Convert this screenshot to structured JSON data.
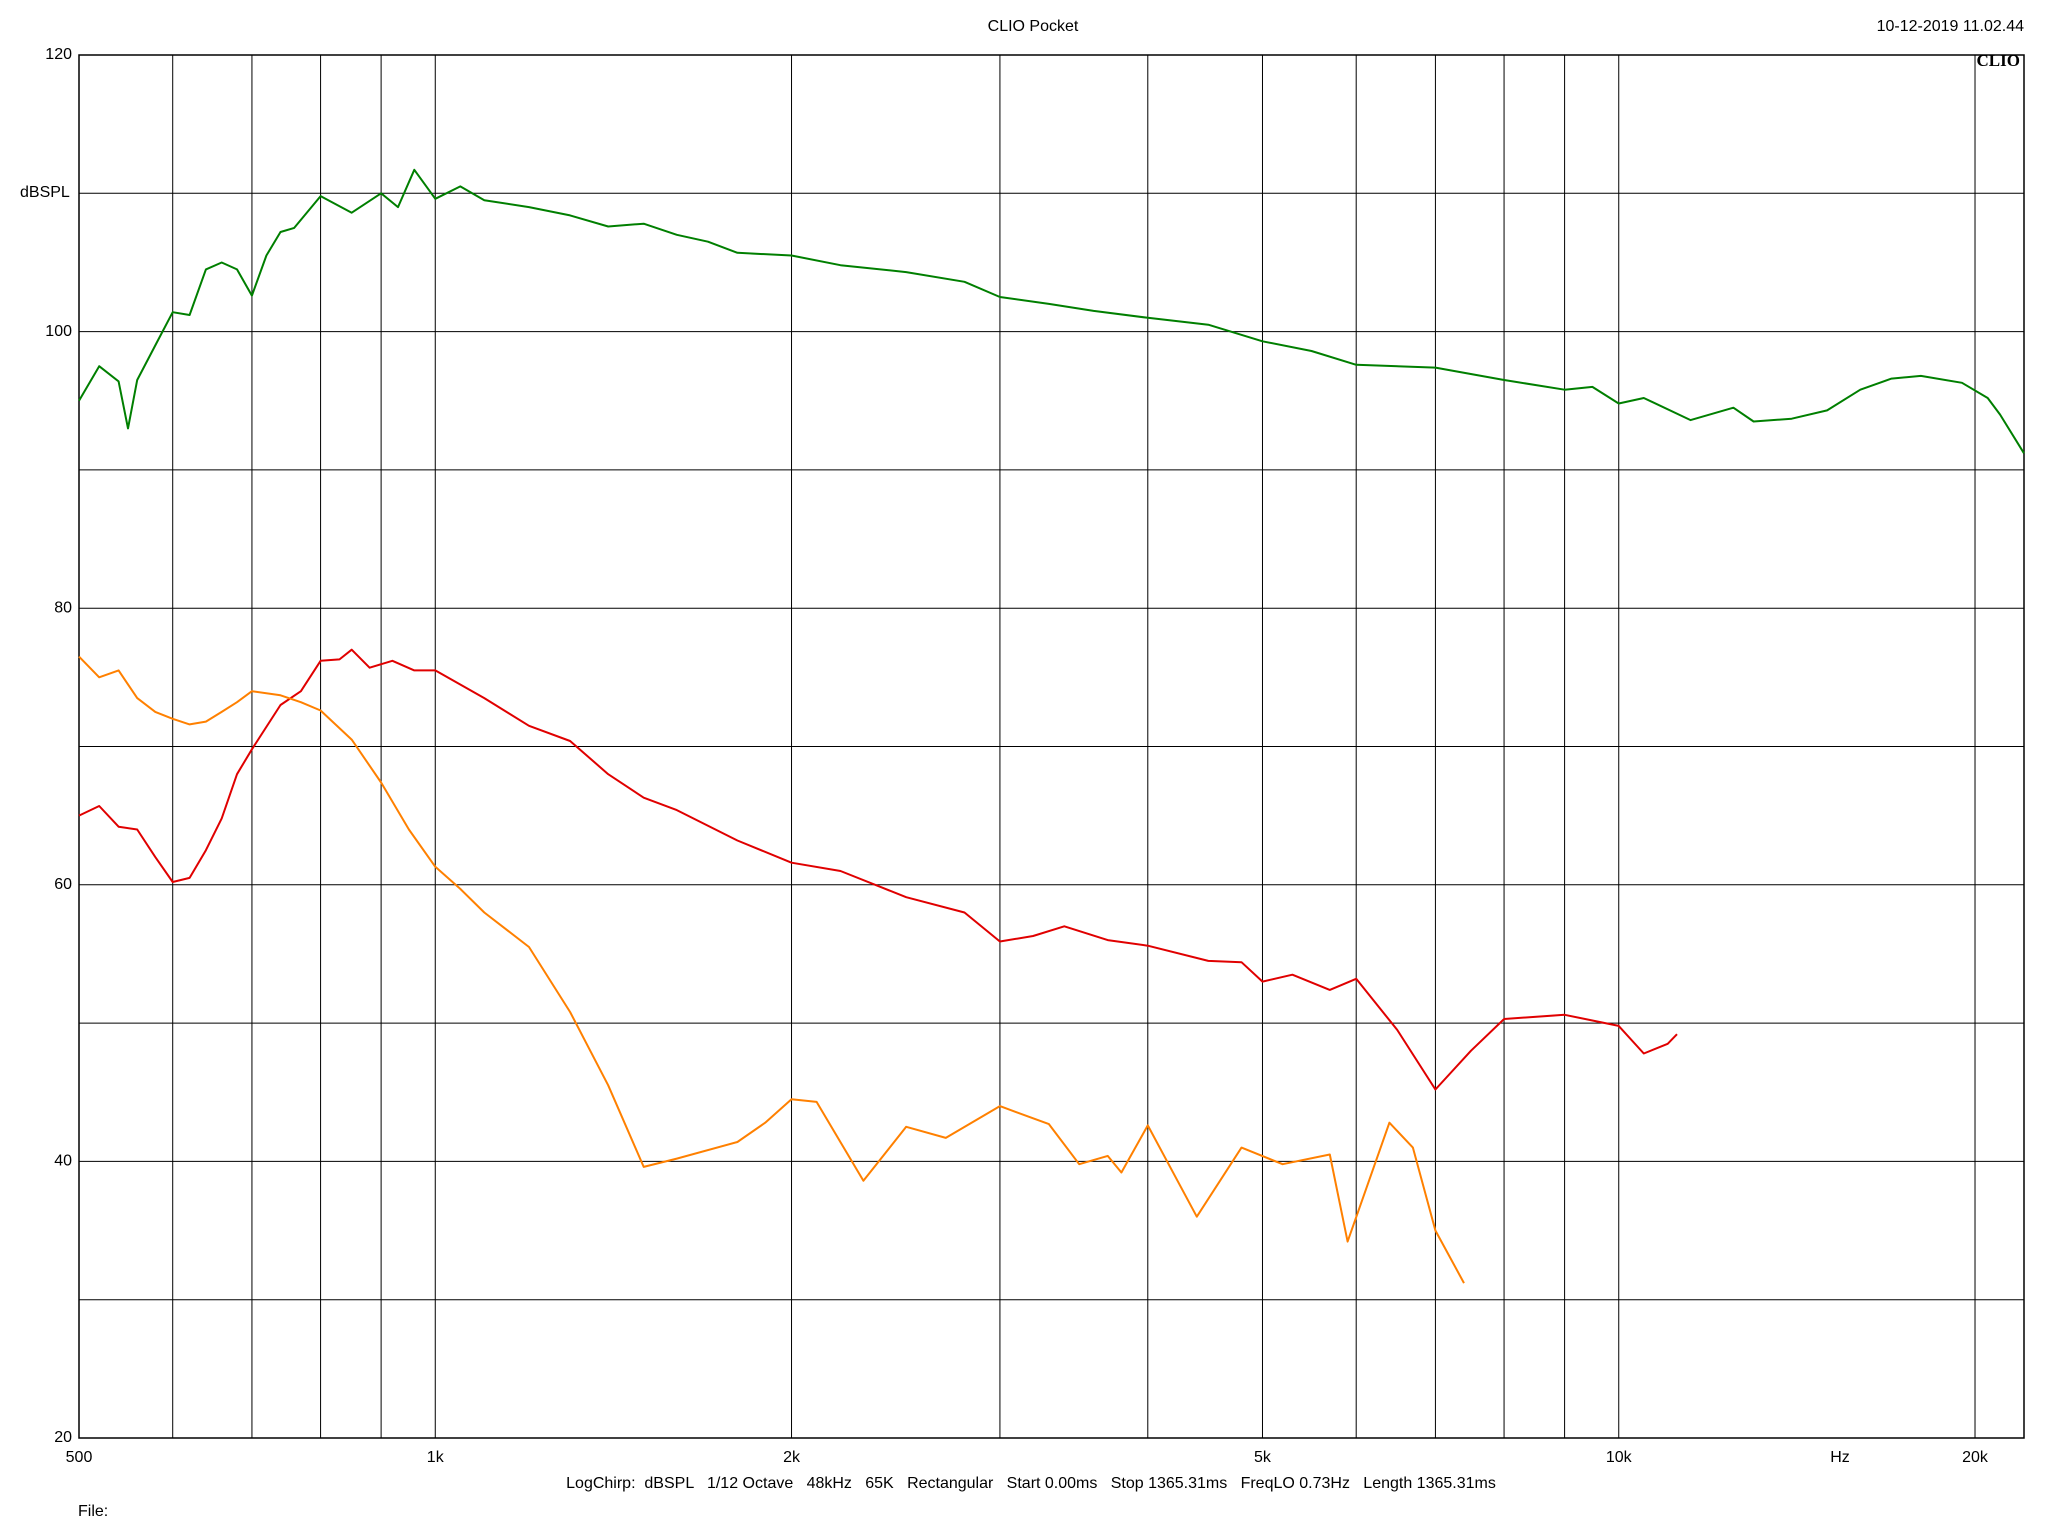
{
  "chart_data": {
    "type": "line",
    "title": "CLIO Pocket",
    "timestamp": "10-12-2019 11.02.44",
    "logo": "CLIO",
    "y_label": "dBSPL",
    "x_unit": "Hz",
    "footer": "LogChirp:  dBSPL   1/12 Octave   48kHz   65K   Rectangular   Start 0.00ms   Stop 1365.31ms   FreqLO 0.73Hz   Length 1365.31ms",
    "file_label": "File:",
    "xscale": "log",
    "grid": true,
    "xlim": [
      500,
      22000
    ],
    "ylim": [
      20,
      120
    ],
    "xticks": [
      500,
      {
        "value": 1000,
        "label": "1k"
      },
      {
        "value": 2000,
        "label": "2k"
      },
      {
        "value": 5000,
        "label": "5k"
      },
      {
        "value": 10000,
        "label": "10k"
      },
      {
        "value": 20000,
        "label": "20k"
      }
    ],
    "xgrid": [
      600,
      700,
      800,
      900,
      3000,
      4000,
      6000,
      7000,
      8000,
      9000
    ],
    "yticks": [
      20,
      40,
      60,
      80,
      100,
      120
    ],
    "ygrid": [
      30,
      50,
      70,
      90,
      110
    ],
    "series": [
      {
        "color": "#007f00",
        "x": [
          500,
          520,
          540,
          550,
          560,
          580,
          600,
          620,
          640,
          660,
          680,
          700,
          720,
          740,
          760,
          800,
          850,
          900,
          930,
          960,
          1000,
          1050,
          1100,
          1200,
          1300,
          1400,
          1500,
          1600,
          1700,
          1800,
          2000,
          2200,
          2500,
          2800,
          3000,
          3300,
          3600,
          4000,
          4500,
          5000,
          5500,
          6000,
          7000,
          8000,
          9000,
          9500,
          10000,
          10500,
          11500,
          12500,
          13000,
          14000,
          15000,
          16000,
          17000,
          18000,
          19500,
          20500,
          21000,
          22000
        ],
        "values": [
          95,
          97.5,
          96.4,
          93,
          96.5,
          99,
          101.4,
          101.2,
          104.5,
          105,
          104.5,
          102.6,
          105.5,
          107.2,
          107.5,
          109.8,
          108.6,
          110,
          109,
          111.7,
          109.6,
          110.5,
          109.5,
          109,
          108.4,
          107.6,
          107.8,
          107,
          106.5,
          105.7,
          105.5,
          104.8,
          104.3,
          103.6,
          102.5,
          102,
          101.5,
          101,
          100.5,
          99.3,
          98.6,
          97.6,
          97.4,
          96.5,
          95.8,
          96,
          94.8,
          95.2,
          93.6,
          94.5,
          93.5,
          93.7,
          94.3,
          95.8,
          96.6,
          96.8,
          96.3,
          95.2,
          94,
          91.2
        ]
      },
      {
        "color": "#e00000",
        "x": [
          500,
          520,
          540,
          560,
          580,
          600,
          620,
          640,
          660,
          680,
          700,
          740,
          770,
          800,
          830,
          850,
          880,
          920,
          960,
          1000,
          1100,
          1200,
          1300,
          1400,
          1500,
          1600,
          1800,
          2000,
          2200,
          2500,
          2800,
          3000,
          3200,
          3400,
          3700,
          4000,
          4500,
          4800,
          5000,
          5300,
          5700,
          6000,
          6500,
          7000,
          7500,
          8000,
          9000,
          10000,
          10500,
          11000,
          11200
        ],
        "values": [
          65,
          65.7,
          64.2,
          64,
          62,
          60.2,
          60.5,
          62.5,
          64.8,
          68,
          69.8,
          73,
          74,
          76.2,
          76.3,
          77,
          75.7,
          76.2,
          75.5,
          75.5,
          73.5,
          71.5,
          70.4,
          68,
          66.3,
          65.4,
          63.2,
          61.6,
          61,
          59.1,
          58,
          55.9,
          56.3,
          57,
          56,
          55.6,
          54.5,
          54.4,
          53,
          53.5,
          52.4,
          53.2,
          49.5,
          45.2,
          48,
          50.3,
          50.6,
          49.8,
          47.8,
          48.5,
          49.2
        ]
      },
      {
        "color": "#ff8000",
        "x": [
          500,
          520,
          540,
          560,
          580,
          600,
          620,
          640,
          660,
          680,
          700,
          740,
          770,
          800,
          850,
          900,
          950,
          1000,
          1050,
          1100,
          1200,
          1300,
          1400,
          1500,
          1600,
          1800,
          1900,
          2000,
          2100,
          2300,
          2500,
          2700,
          3000,
          3300,
          3500,
          3700,
          3800,
          4000,
          4400,
          4800,
          5200,
          5700,
          5900,
          6400,
          6700,
          7000,
          7400
        ],
        "values": [
          76.5,
          75,
          75.5,
          73.5,
          72.5,
          72,
          71.6,
          71.8,
          72.5,
          73.2,
          74,
          73.7,
          73.2,
          72.6,
          70.5,
          67.4,
          64,
          61.3,
          59.7,
          58,
          55.5,
          50.8,
          45.5,
          39.6,
          40.2,
          41.4,
          42.8,
          44.5,
          44.3,
          38.6,
          42.5,
          41.7,
          44,
          42.7,
          39.8,
          40.4,
          39.2,
          42.6,
          36,
          41,
          39.8,
          40.5,
          34.2,
          42.8,
          41,
          35,
          31.2
        ]
      }
    ]
  }
}
